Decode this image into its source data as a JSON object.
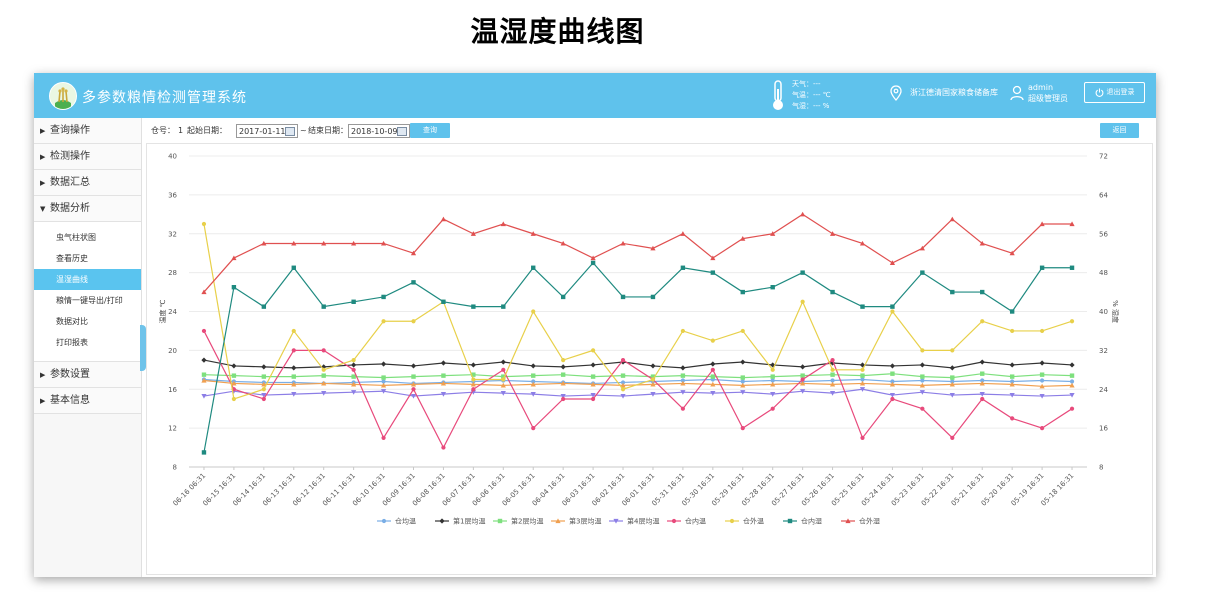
{
  "page_caption": "温湿度曲线图",
  "header": {
    "title": "多参数粮情检测管理系统",
    "weather": {
      "sky": "天气：---",
      "temp": "气温：--- ℃",
      "humidity": "气湿：--- %"
    },
    "granary": "浙江德清国家粮食储备库",
    "user": {
      "name": "admin",
      "role": "超级管理员"
    },
    "logout_label": "退出登录"
  },
  "sidebar": {
    "groups": [
      {
        "label": "查询操作"
      },
      {
        "label": "检测操作"
      },
      {
        "label": "数据汇总"
      },
      {
        "label": "数据分析"
      },
      {
        "label": "参数设置"
      },
      {
        "label": "基本信息"
      }
    ],
    "analysis_items": [
      {
        "label": "虫气柱状图"
      },
      {
        "label": "查看历史"
      },
      {
        "label": "温湿曲线"
      },
      {
        "label": "粮情一键导出/打印"
      },
      {
        "label": "数据对比"
      },
      {
        "label": "打印报表"
      }
    ]
  },
  "toolbar": {
    "warehouse_label": "仓号：",
    "warehouse_value": "1",
    "start_label": "起始日期：",
    "start_date": "2017-01-11",
    "range_sep": "~",
    "end_label": "结束日期：",
    "end_date": "2018-10-09",
    "query_label": "查询",
    "back_label": "返回"
  },
  "chart_data": {
    "type": "line",
    "y_left_label": "温度 ℃",
    "y_right_label": "% 湿度",
    "y_left_ticks": [
      8,
      12,
      16,
      20,
      24,
      28,
      32,
      36,
      40
    ],
    "y_right_ticks": [
      8,
      16,
      24,
      32,
      40,
      48,
      56,
      64,
      72
    ],
    "ylim_left": [
      8,
      40
    ],
    "ylim_right": [
      8,
      72
    ],
    "grid": true,
    "legend_position": "bottom",
    "categories": [
      "06-16 06:31",
      "06-15 16:31",
      "06-14 16:31",
      "06-13 16:31",
      "06-12 16:31",
      "06-11 16:31",
      "06-10 16:31",
      "06-09 16:31",
      "06-08 16:31",
      "06-07 16:31",
      "06-06 16:31",
      "06-05 16:31",
      "06-04 16:31",
      "06-03 16:31",
      "06-02 16:31",
      "06-01 16:31",
      "05-31 16:31",
      "05-30 16:31",
      "05-29 16:31",
      "05-28 16:31",
      "05-27 16:31",
      "05-26 16:31",
      "05-25 16:31",
      "05-24 16:31",
      "05-23 16:31",
      "05-22 16:31",
      "05-21 16:31",
      "05-20 16:31",
      "05-19 16:31",
      "05-18 16:31"
    ],
    "series": [
      {
        "name": "仓均温",
        "color": "#7aaee6",
        "marker": "circle",
        "axis": "left",
        "values": [
          17.0,
          16.8,
          16.7,
          16.7,
          16.6,
          16.7,
          16.8,
          16.6,
          16.7,
          16.8,
          16.9,
          16.8,
          16.7,
          16.6,
          16.7,
          16.8,
          16.9,
          17.0,
          16.8,
          16.9,
          16.8,
          16.9,
          17.0,
          16.8,
          16.9,
          16.8,
          16.9,
          16.8,
          16.9,
          16.8
        ]
      },
      {
        "name": "第1层均温",
        "color": "#333333",
        "marker": "diamond",
        "axis": "left",
        "values": [
          19.0,
          18.4,
          18.3,
          18.2,
          18.3,
          18.5,
          18.6,
          18.4,
          18.7,
          18.5,
          18.8,
          18.4,
          18.3,
          18.5,
          18.8,
          18.4,
          18.2,
          18.6,
          18.8,
          18.5,
          18.3,
          18.7,
          18.5,
          18.4,
          18.5,
          18.2,
          18.8,
          18.5,
          18.7,
          18.5
        ]
      },
      {
        "name": "第2层均温",
        "color": "#7ee07e",
        "marker": "square",
        "axis": "left",
        "values": [
          17.5,
          17.4,
          17.3,
          17.3,
          17.4,
          17.3,
          17.2,
          17.3,
          17.4,
          17.5,
          17.3,
          17.4,
          17.5,
          17.3,
          17.4,
          17.3,
          17.4,
          17.3,
          17.2,
          17.3,
          17.4,
          17.5,
          17.4,
          17.6,
          17.3,
          17.2,
          17.6,
          17.3,
          17.5,
          17.4
        ]
      },
      {
        "name": "第3层均温",
        "color": "#f0a050",
        "marker": "triangle",
        "axis": "left",
        "values": [
          16.9,
          16.6,
          16.5,
          16.5,
          16.6,
          16.5,
          16.4,
          16.5,
          16.6,
          16.5,
          16.4,
          16.5,
          16.6,
          16.5,
          16.4,
          16.5,
          16.6,
          16.5,
          16.4,
          16.5,
          16.6,
          16.5,
          16.6,
          16.5,
          16.4,
          16.5,
          16.6,
          16.5,
          16.3,
          16.4
        ]
      },
      {
        "name": "第4层均温",
        "color": "#8c7ee6",
        "marker": "triangle-down",
        "axis": "left",
        "values": [
          15.3,
          15.8,
          15.4,
          15.5,
          15.6,
          15.7,
          15.8,
          15.3,
          15.5,
          15.7,
          15.6,
          15.5,
          15.3,
          15.4,
          15.3,
          15.5,
          15.7,
          15.6,
          15.7,
          15.5,
          15.8,
          15.6,
          16.0,
          15.4,
          15.7,
          15.4,
          15.5,
          15.4,
          15.3,
          15.4
        ]
      },
      {
        "name": "仓内温",
        "color": "#e84a7c",
        "marker": "circle",
        "axis": "left",
        "values": [
          22.0,
          16.0,
          15.0,
          20.0,
          20.0,
          18.0,
          11.0,
          16.0,
          10.0,
          16.0,
          18.0,
          12.0,
          15.0,
          15.0,
          19.0,
          17.0,
          14.0,
          18.0,
          12.0,
          14.0,
          17.0,
          19.0,
          11.0,
          15.0,
          14.0,
          11.0,
          15.0,
          13.0,
          12.0,
          14.0
        ]
      },
      {
        "name": "仓外温",
        "color": "#e8d04a",
        "marker": "circle",
        "axis": "left",
        "values": [
          33.0,
          15.0,
          16.0,
          22.0,
          18.0,
          19.0,
          23.0,
          23.0,
          25.0,
          17.0,
          17.0,
          24.0,
          19.0,
          20.0,
          16.0,
          17.0,
          22.0,
          21.0,
          22.0,
          18.0,
          25.0,
          18.0,
          18.0,
          24.0,
          20.0,
          20.0,
          23.0,
          22.0,
          22.0,
          23.0
        ]
      },
      {
        "name": "仓内湿",
        "color": "#1f8a80",
        "marker": "square",
        "axis": "right",
        "values": [
          11.0,
          45.0,
          41.0,
          49.0,
          41.0,
          42.0,
          43.0,
          46.0,
          42.0,
          41.0,
          41.0,
          49.0,
          43.0,
          50.0,
          43.0,
          43.0,
          49.0,
          48.0,
          44.0,
          45.0,
          48.0,
          44.0,
          41.0,
          41.0,
          48.0,
          44.0,
          44.0,
          40.0,
          49.0,
          49.0
        ]
      },
      {
        "name": "仓外湿",
        "color": "#e05050",
        "marker": "triangle",
        "axis": "right",
        "values": [
          44.0,
          51.0,
          54.0,
          54.0,
          54.0,
          54.0,
          54.0,
          52.0,
          59.0,
          56.0,
          58.0,
          56.0,
          54.0,
          51.0,
          54.0,
          53.0,
          56.0,
          51.0,
          55.0,
          56.0,
          60.0,
          56.0,
          54.0,
          50.0,
          53.0,
          59.0,
          54.0,
          52.0,
          58.0,
          58.0
        ]
      }
    ]
  }
}
